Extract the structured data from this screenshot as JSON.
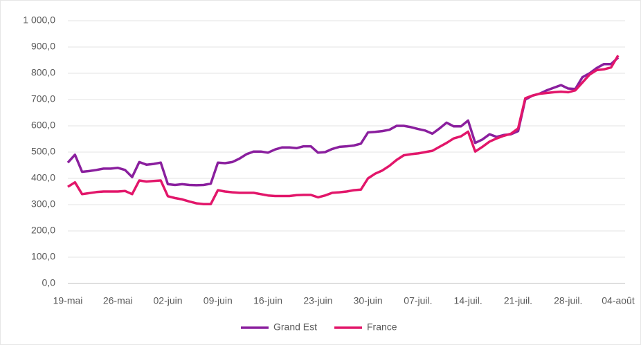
{
  "chart_data": {
    "type": "line",
    "categories": [
      "19-mai",
      null,
      null,
      null,
      null,
      null,
      null,
      "26-mai",
      null,
      null,
      null,
      null,
      null,
      null,
      "02-juin",
      null,
      null,
      null,
      null,
      null,
      null,
      "09-juin",
      null,
      null,
      null,
      null,
      null,
      null,
      "16-juin",
      null,
      null,
      null,
      null,
      null,
      null,
      "23-juin",
      null,
      null,
      null,
      null,
      null,
      null,
      "30-juin",
      null,
      null,
      null,
      null,
      null,
      null,
      "07-juil.",
      null,
      null,
      null,
      null,
      null,
      null,
      "14-juil.",
      null,
      null,
      null,
      null,
      null,
      null,
      "21-juil.",
      null,
      null,
      null,
      null,
      null,
      null,
      "28-juil.",
      null,
      null,
      null,
      null,
      null,
      null,
      "04-août"
    ],
    "series": [
      {
        "name": "Grand Est",
        "color": "#8a1f9e",
        "values": [
          460,
          490,
          425,
          428,
          432,
          437,
          437,
          440,
          432,
          405,
          462,
          452,
          455,
          460,
          378,
          375,
          378,
          375,
          374,
          375,
          380,
          460,
          458,
          462,
          475,
          492,
          502,
          502,
          498,
          510,
          518,
          518,
          515,
          522,
          522,
          498,
          500,
          512,
          520,
          522,
          525,
          532,
          575,
          577,
          580,
          585,
          600,
          600,
          595,
          588,
          582,
          570,
          590,
          612,
          598,
          598,
          620,
          535,
          548,
          568,
          558,
          565,
          568,
          580,
          700,
          715,
          722,
          735,
          745,
          755,
          742,
          740,
          785,
          800,
          820,
          835,
          835,
          860
        ]
      },
      {
        "name": "France",
        "color": "#e2166a",
        "values": [
          368,
          385,
          340,
          344,
          348,
          350,
          350,
          350,
          352,
          340,
          392,
          388,
          390,
          392,
          332,
          325,
          320,
          312,
          305,
          302,
          302,
          355,
          350,
          347,
          345,
          345,
          345,
          340,
          335,
          333,
          333,
          333,
          336,
          337,
          337,
          328,
          335,
          345,
          347,
          350,
          355,
          357,
          400,
          418,
          430,
          448,
          470,
          488,
          492,
          495,
          500,
          505,
          520,
          535,
          552,
          560,
          578,
          502,
          520,
          540,
          552,
          562,
          570,
          590,
          705,
          715,
          722,
          725,
          728,
          730,
          728,
          735,
          765,
          795,
          812,
          815,
          822,
          868
        ]
      }
    ],
    "ylim": [
      0,
      1000
    ],
    "yticks": [
      {
        "value": 0,
        "label": "0,0"
      },
      {
        "value": 100,
        "label": "100,0"
      },
      {
        "value": 200,
        "label": "200,0"
      },
      {
        "value": 300,
        "label": "300,0"
      },
      {
        "value": 400,
        "label": "400,0"
      },
      {
        "value": 500,
        "label": "500,0"
      },
      {
        "value": 600,
        "label": "600,0"
      },
      {
        "value": 700,
        "label": "700,0"
      },
      {
        "value": 800,
        "label": "800,0"
      },
      {
        "value": 900,
        "label": "900,0"
      },
      {
        "value": 1000,
        "label": "1 000,0"
      }
    ],
    "grid": true,
    "legend": "bottom"
  }
}
